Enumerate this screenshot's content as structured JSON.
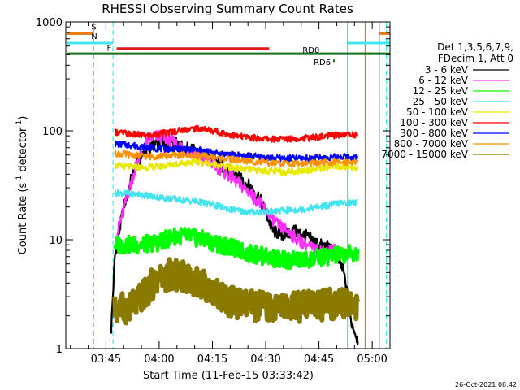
{
  "chart_data": {
    "type": "line",
    "title": "RHESSI Observing Summary Count Rates",
    "xlabel": "Start Time (11-Feb-15 03:33:42)",
    "ylabel": "Count Rate (s⁻¹ detector⁻¹)",
    "ylabel_parts": [
      "Count Rate (s",
      "-1",
      " detector",
      "-1",
      ")"
    ],
    "yscale": "log",
    "ylim": [
      1,
      1000
    ],
    "xlim": [
      "03:33:42",
      "05:05:00"
    ],
    "y_ticks": [
      "1",
      "10",
      "100",
      "1000"
    ],
    "x_ticks": [
      "03:45",
      "04:00",
      "04:15",
      "04:30",
      "04:45",
      "05:00"
    ],
    "timestamp": "26-Oct-2021 08:42",
    "legend": {
      "header": [
        "Det 1,3,5,6,7,9,",
        "FDecim 1, Att 0"
      ],
      "placement": "right"
    },
    "flags": [
      {
        "label": "S",
        "color": "#e87d14",
        "y": 780,
        "segments": [
          [
            "03:34:00",
            "03:41:30"
          ],
          [
            "05:02:00",
            "05:05:00"
          ]
        ]
      },
      {
        "label": "N",
        "color": "#44e4ee",
        "y": 640,
        "segments": [
          [
            "03:34:00",
            "03:47:00"
          ],
          [
            "04:53:00",
            "05:05:00"
          ]
        ]
      },
      {
        "label": "F",
        "color": "#e21818",
        "y": 570,
        "segments": [
          [
            "03:48:00",
            "04:31:00"
          ]
        ]
      },
      {
        "label": "RD0",
        "color": "#147014",
        "y": 510,
        "segments": [
          [
            "03:34:00",
            "05:05:00"
          ]
        ]
      },
      {
        "label": "RD6",
        "color": "#147014",
        "y": 440,
        "segments": [
          [
            "04:49:00",
            "04:49:20"
          ]
        ]
      }
    ],
    "vlines": [
      {
        "t": "03:41:30",
        "color": "#e87d14",
        "style": "dashed"
      },
      {
        "t": "03:47:00",
        "color": "#44e4ee",
        "style": "dashed"
      },
      {
        "t": "04:53:00",
        "color": "#44e4ee",
        "style": "solid"
      },
      {
        "t": "04:58:00",
        "color": "#e87d14",
        "style": "solid"
      },
      {
        "t": "05:02:00",
        "color": "#e87d14",
        "style": "solid"
      },
      {
        "t": "05:04:00",
        "color": "#44e4ee",
        "style": "dashed"
      }
    ],
    "series": [
      {
        "name": "3 - 6 keV",
        "color": "#000000",
        "x": [
          "03:46:30",
          "03:47:30",
          "03:50:00",
          "03:53:00",
          "03:56:00",
          "04:00:00",
          "04:05:00",
          "04:10:00",
          "04:15:00",
          "04:20:00",
          "04:25:00",
          "04:28:00",
          "04:30:00",
          "04:32:00",
          "04:35:00",
          "04:38:00",
          "04:41:00",
          "04:45:00",
          "04:48:00",
          "04:50:00",
          "04:52:00",
          "04:54:00",
          "04:56:00"
        ],
        "values": [
          1.5,
          7,
          20,
          45,
          68,
          80,
          75,
          65,
          55,
          42,
          32,
          25,
          18,
          12,
          11,
          12,
          11,
          9,
          8.5,
          7,
          5,
          1.8,
          1.2
        ]
      },
      {
        "name": "6 - 12 keV",
        "color": "#ff30ff",
        "x": [
          "03:48:00",
          "03:51:00",
          "03:54:00",
          "03:57:00",
          "04:00:00",
          "04:03:00",
          "04:06:00",
          "04:10:00",
          "04:15:00",
          "04:20:00",
          "04:25:00",
          "04:30:00",
          "04:33:00",
          "04:36:00",
          "04:40:00",
          "04:44:00",
          "04:48:00",
          "04:51:00"
        ],
        "values": [
          11,
          25,
          55,
          85,
          90,
          82,
          72,
          62,
          50,
          38,
          28,
          19,
          14,
          12,
          9.5,
          8,
          8,
          8
        ]
      },
      {
        "name": "12 - 25 keV",
        "color": "#00ff00",
        "x": [
          "03:47:30",
          "03:50:00",
          "03:55:00",
          "04:00:00",
          "04:05:00",
          "04:10:00",
          "04:15:00",
          "04:20:00",
          "04:25:00",
          "04:30:00",
          "04:35:00",
          "04:40:00",
          "04:45:00",
          "04:50:00",
          "04:56:00"
        ],
        "values": [
          9,
          9,
          9,
          9.5,
          11,
          10.5,
          9.5,
          8.5,
          7.5,
          7,
          6.5,
          6.5,
          6.8,
          7.2,
          7.5
        ]
      },
      {
        "name": "25 - 50 keV",
        "color": "#44e4ee",
        "x": [
          "03:47:30",
          "03:55:00",
          "04:00:00",
          "04:05:00",
          "04:10:00",
          "04:15:00",
          "04:20:00",
          "04:25:00",
          "04:30:00",
          "04:35:00",
          "04:40:00",
          "04:45:00",
          "04:50:00",
          "04:56:00"
        ],
        "values": [
          27,
          26,
          24.5,
          23.5,
          22.5,
          21,
          19,
          18,
          18,
          18.5,
          19,
          20,
          21.5,
          22
        ]
      },
      {
        "name": "50 - 100 keV",
        "color": "#e8e800",
        "x": [
          "03:47:30",
          "03:55:00",
          "04:00:00",
          "04:05:00",
          "04:10:00",
          "04:15:00",
          "04:20:00",
          "04:25:00",
          "04:30:00",
          "04:35:00",
          "04:40:00",
          "04:45:00",
          "04:50:00",
          "04:56:00"
        ],
        "values": [
          48,
          46,
          47,
          50,
          52,
          50,
          46,
          44,
          43,
          42,
          43,
          45,
          47,
          46
        ]
      },
      {
        "name": "100 - 300 keV",
        "color": "#ff0000",
        "x": [
          "03:47:30",
          "03:52:00",
          "03:57:00",
          "04:02:00",
          "04:07:00",
          "04:12:00",
          "04:17:00",
          "04:22:00",
          "04:27:00",
          "04:32:00",
          "04:37:00",
          "04:42:00",
          "04:47:00",
          "04:52:00",
          "04:56:00"
        ],
        "values": [
          98,
          93,
          90,
          96,
          103,
          105,
          97,
          89,
          86,
          84,
          85,
          86,
          89,
          93,
          92
        ]
      },
      {
        "name": "300 - 800 keV",
        "color": "#0000ff",
        "x": [
          "03:47:30",
          "03:52:00",
          "03:57:00",
          "04:02:00",
          "04:07:00",
          "04:12:00",
          "04:17:00",
          "04:22:00",
          "04:27:00",
          "04:32:00",
          "04:37:00",
          "04:42:00",
          "04:47:00",
          "04:52:00",
          "04:56:00"
        ],
        "values": [
          76,
          74,
          70,
          68,
          68,
          66,
          62,
          60,
          58,
          56,
          56,
          56,
          57,
          58,
          57
        ]
      },
      {
        "name": "800 - 7000 keV",
        "color": "#ff9000",
        "x": [
          "03:47:30",
          "03:52:00",
          "03:57:00",
          "04:02:00",
          "04:07:00",
          "04:12:00",
          "04:17:00",
          "04:22:00",
          "04:27:00",
          "04:32:00",
          "04:37:00",
          "04:42:00",
          "04:47:00",
          "04:52:00",
          "04:56:00"
        ],
        "values": [
          62,
          60,
          58,
          59,
          60,
          59,
          56,
          54,
          52,
          50,
          50,
          50,
          51,
          52,
          52
        ]
      },
      {
        "name": "7000 - 15000 keV",
        "color": "#8a7a00",
        "x": [
          "03:47:30",
          "03:52:00",
          "03:56:00",
          "03:59:00",
          "04:03:00",
          "04:08:00",
          "04:12:00",
          "04:16:00",
          "04:20:00",
          "04:25:00",
          "04:30:00",
          "04:35:00",
          "04:40:00",
          "04:45:00",
          "04:50:00",
          "04:56:00"
        ],
        "values": [
          2.3,
          2.4,
          3.2,
          4.3,
          4.8,
          4.5,
          3.9,
          3.3,
          2.7,
          2.5,
          2.4,
          2.4,
          2.4,
          2.5,
          2.6,
          2.5
        ]
      }
    ]
  }
}
